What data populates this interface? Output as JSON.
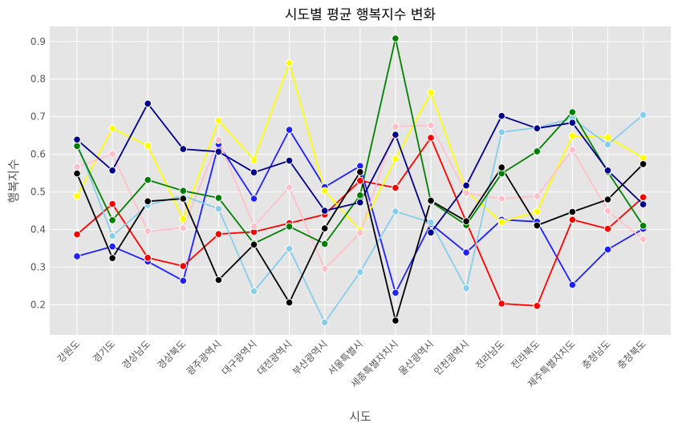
{
  "chart_data": {
    "type": "line",
    "title": "시도별 평균 행복지수 변화",
    "xlabel": "시도",
    "ylabel": "행복지수",
    "ylim": [
      0.12,
      0.94
    ],
    "yticks": [
      "0.2",
      "0.3",
      "0.4",
      "0.5",
      "0.6",
      "0.7",
      "0.8",
      "0.9"
    ],
    "grid": true,
    "legend": "none",
    "categories": [
      "강원도",
      "경기도",
      "경상남도",
      "경상북도",
      "광주광역시",
      "대구광역시",
      "대전광역시",
      "부산광역시",
      "서울특별시",
      "세종특별자치시",
      "울산광역시",
      "인천광역시",
      "전라남도",
      "전라북도",
      "제주특별자치도",
      "충청남도",
      "충청북도"
    ],
    "series": [
      {
        "color": "#1f1fff",
        "values": [
          0.329,
          0.355,
          0.315,
          0.264,
          0.627,
          0.482,
          0.665,
          0.513,
          0.569,
          0.232,
          0.415,
          0.339,
          0.426,
          0.421,
          0.253,
          0.347,
          0.402
        ]
      },
      {
        "color": "#ff0000",
        "values": [
          0.387,
          0.468,
          0.325,
          0.303,
          0.388,
          0.394,
          0.417,
          0.44,
          0.53,
          0.511,
          0.644,
          0.42,
          0.203,
          0.197,
          0.426,
          0.402,
          0.486
        ]
      },
      {
        "color": "#ffff00",
        "values": [
          0.489,
          0.669,
          0.623,
          0.428,
          0.69,
          0.585,
          0.843,
          0.503,
          0.398,
          0.588,
          0.764,
          0.502,
          0.42,
          0.448,
          0.649,
          0.645,
          0.591
        ]
      },
      {
        "color": "#ffc0cb",
        "values": [
          0.566,
          0.601,
          0.396,
          0.404,
          0.638,
          0.409,
          0.512,
          0.295,
          0.391,
          0.674,
          0.677,
          0.497,
          0.482,
          0.489,
          0.612,
          0.449,
          0.374
        ]
      },
      {
        "color": "#87ceeb",
        "values": [
          0.63,
          0.383,
          0.465,
          0.49,
          0.455,
          0.236,
          0.349,
          0.153,
          0.287,
          0.448,
          0.419,
          0.244,
          0.659,
          0.671,
          0.695,
          0.626,
          0.705
        ]
      },
      {
        "color": "#008000",
        "values": [
          0.622,
          0.425,
          0.532,
          0.503,
          0.484,
          0.363,
          0.408,
          0.362,
          0.491,
          0.908,
          0.474,
          0.412,
          0.549,
          0.608,
          0.712,
          0.553,
          0.41
        ]
      },
      {
        "color": "#00008b",
        "values": [
          0.639,
          0.557,
          0.735,
          0.614,
          0.607,
          0.552,
          0.583,
          0.45,
          0.472,
          0.652,
          0.392,
          0.517,
          0.702,
          0.669,
          0.684,
          0.557,
          0.467
        ]
      },
      {
        "color": "#000000",
        "values": [
          0.549,
          0.324,
          0.475,
          0.482,
          0.266,
          0.36,
          0.206,
          0.403,
          0.553,
          0.158,
          0.477,
          0.422,
          0.565,
          0.411,
          0.447,
          0.48,
          0.574
        ]
      }
    ]
  }
}
